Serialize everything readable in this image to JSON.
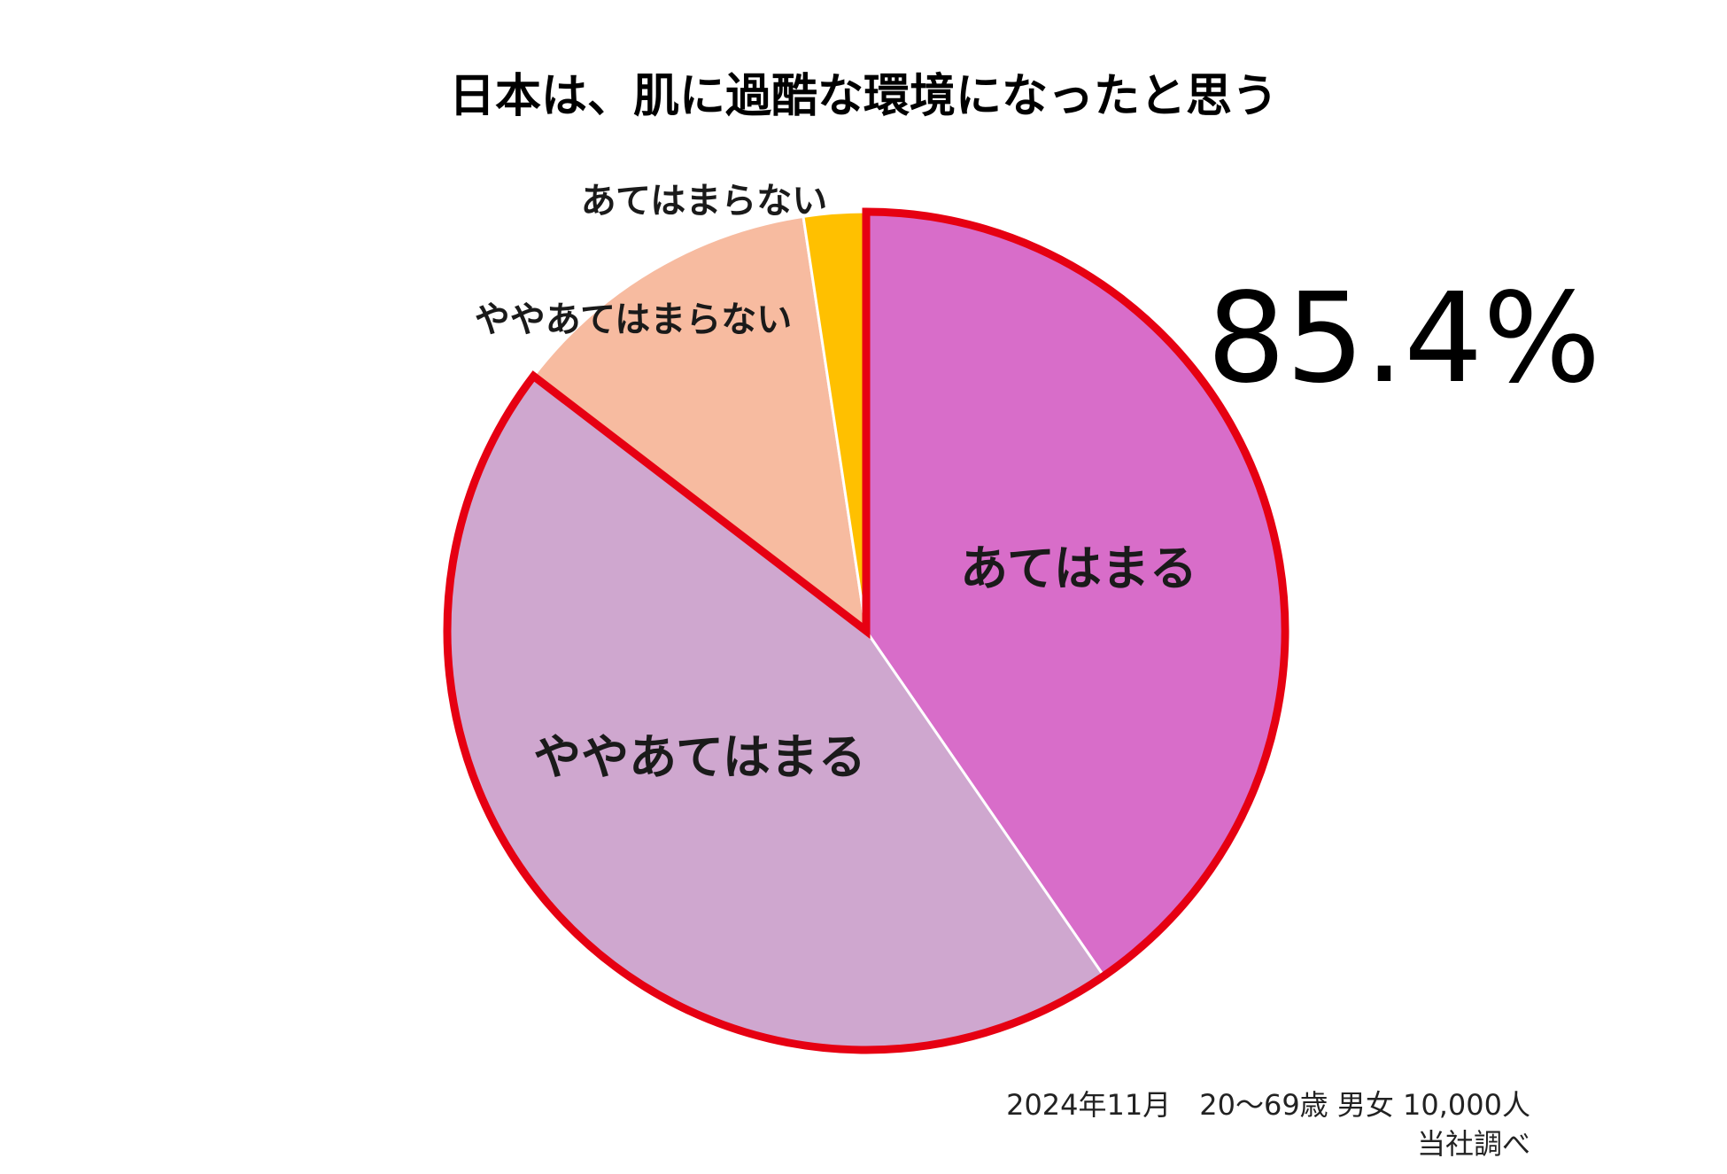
{
  "chart_data": {
    "type": "pie",
    "title": "日本は、肌に過酷な環境になったと思う",
    "slices": [
      {
        "label": "あてはまる",
        "value": 40.4,
        "color": "#D86DC9"
      },
      {
        "label": "ややあてはまる",
        "value": 45.0,
        "color": "#CFA7CF"
      },
      {
        "label": "ややあてはまらない",
        "value": 12.2,
        "color": "#F7BBA0"
      },
      {
        "label": "あてはまらない",
        "value": 2.4,
        "color": "#FFC000"
      }
    ],
    "highlight": {
      "value_text": "85.4%",
      "outline_color": "#E60012"
    },
    "source_line1": "2024年11月　20～69歳 男女 10,000人",
    "source_line2": "当社調べ"
  }
}
